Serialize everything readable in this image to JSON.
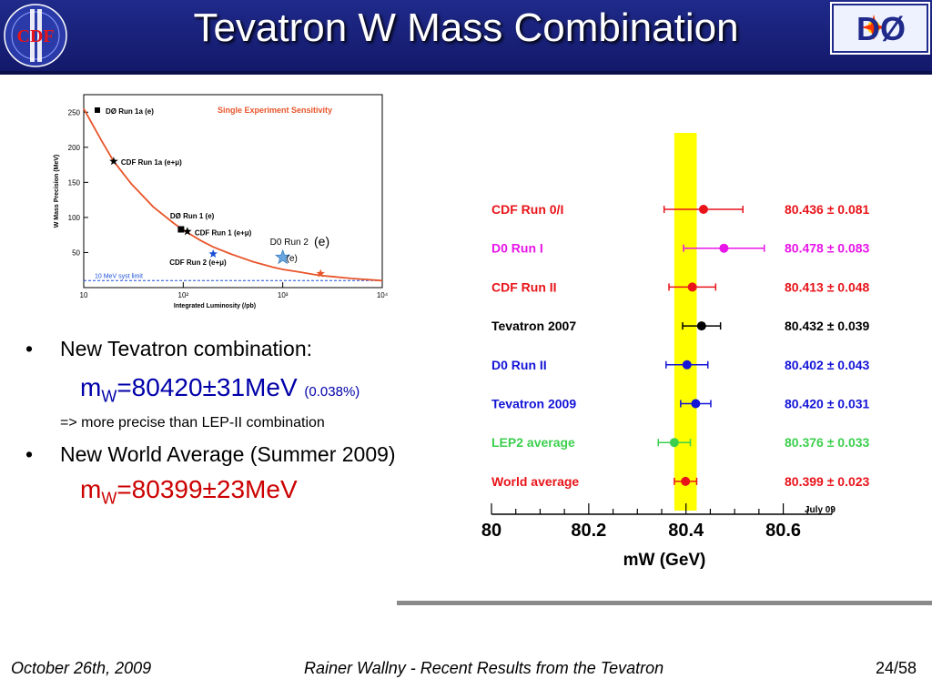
{
  "slide": {
    "title": "Tevatron W Mass Combination",
    "footer_left": "October 26th, 2009",
    "footer_center": "Rainer Wallny - Recent Results from the Tevatron",
    "footer_right": "24/58",
    "logos": {
      "left_text": "CDF",
      "right_text": "DØ"
    }
  },
  "bullets": [
    {
      "text": "New Tevatron combination:"
    },
    {
      "text": "New World Average (Summer 2009)"
    }
  ],
  "tevatron_formula": {
    "prefix": "m",
    "sub": "W",
    "value": "=80420±31MeV",
    "pct": "(0.038%)"
  },
  "note": "=> more precise than LEP-II combination",
  "world_formula": {
    "prefix": "m",
    "sub": "W",
    "value": "=80399±23MeV"
  },
  "colors": {
    "header": "#1f2a8a",
    "red_text": "#cc0000",
    "blue_text": "#0000aa",
    "band": "#ffff00",
    "curve": "#e8552a"
  },
  "chart_data": [
    {
      "type": "line",
      "title": "Single Experiment Sensitivity",
      "xlabel": "Integrated Luminosity  (/pb)",
      "ylabel": "W Mass Precision (MeV)",
      "xscale": "log",
      "xlim": [
        10,
        10000
      ],
      "ylim": [
        0,
        275
      ],
      "yticks": [
        50,
        100,
        150,
        200,
        250
      ],
      "xticks": [
        {
          "value": 10,
          "label": "10"
        },
        {
          "value": 100,
          "label": "10²"
        },
        {
          "value": 1000,
          "label": "10³"
        },
        {
          "value": 10000,
          "label": "10⁴"
        }
      ],
      "curve": {
        "x": [
          10,
          15,
          20,
          30,
          50,
          80,
          100,
          150,
          200,
          300,
          500,
          800,
          1000,
          1500,
          2000,
          2500,
          3000,
          5000,
          10000
        ],
        "y": [
          255,
          210,
          180,
          148,
          115,
          92,
          82,
          67,
          58,
          48,
          37,
          29,
          26,
          22,
          19,
          17,
          16,
          13,
          10
        ]
      },
      "syst_limit": {
        "y": 10,
        "label": "10 MeV syst limit"
      },
      "points": [
        {
          "label": "DØ Run 1a (e)",
          "x": null,
          "y": null,
          "marker": "square",
          "color": "#000000",
          "legend_only": true
        },
        {
          "label": "CDF Run 1a (e+μ)",
          "x": 20,
          "y": 180,
          "marker": "star",
          "color": "#000000"
        },
        {
          "label": "DØ Run 1 (e)",
          "x": 95,
          "y": 83,
          "marker": "square",
          "color": "#000000"
        },
        {
          "label": "CDF Run 1 (e+μ)",
          "x": 110,
          "y": 80,
          "marker": "star",
          "color": "#000000"
        },
        {
          "label": "CDF Run 2 (e+μ)",
          "x": 200,
          "y": 48,
          "marker": "star",
          "color": "#1a4fd6"
        },
        {
          "label": "D0 Run 2",
          "sublabel": "(e)",
          "x": 1000,
          "y": 43,
          "marker": "star",
          "color": "#6aa6e0"
        },
        {
          "label": "",
          "x": 2400,
          "y": 20,
          "marker": "star",
          "color": "#e8552a"
        }
      ],
      "annotation_overlay": "(e)"
    },
    {
      "type": "scatter",
      "xlabel": "mW (GeV)",
      "xlim": [
        80,
        80.7
      ],
      "xticks": [
        80,
        80.2,
        80.4,
        80.6
      ],
      "xtick_labels": [
        "80",
        "80.2",
        "80.4",
        "80.6"
      ],
      "band": {
        "center": 80.399,
        "halfwidth": 0.023
      },
      "tag": "July 09",
      "series": [
        {
          "name": "CDF Run 0/I",
          "value": 80.436,
          "error": 0.081,
          "value_label": "80.436 ± 0.081",
          "color": "#e8141a"
        },
        {
          "name": "D0 Run I",
          "value": 80.478,
          "error": 0.083,
          "value_label": "80.478 ± 0.083",
          "color": "#e814e8"
        },
        {
          "name": "CDF Run  II",
          "value": 80.413,
          "error": 0.048,
          "value_label": "80.413 ± 0.048",
          "color": "#e8141a"
        },
        {
          "name": "Tevatron 2007",
          "value": 80.432,
          "error": 0.039,
          "value_label": "80.432 ± 0.039",
          "color": "#000000"
        },
        {
          "name": "D0 Run II",
          "value": 80.402,
          "error": 0.043,
          "value_label": "80.402 ± 0.043",
          "color": "#1414d8"
        },
        {
          "name": "Tevatron 2009",
          "value": 80.42,
          "error": 0.031,
          "value_label": "80.420 ± 0.031",
          "color": "#1414d8"
        },
        {
          "name": "LEP2 average",
          "value": 80.376,
          "error": 0.033,
          "value_label": "80.376 ± 0.033",
          "color": "#3ccf4e"
        },
        {
          "name": "World average",
          "value": 80.399,
          "error": 0.023,
          "value_label": "80.399 ± 0.023",
          "color": "#e8141a"
        }
      ]
    }
  ]
}
